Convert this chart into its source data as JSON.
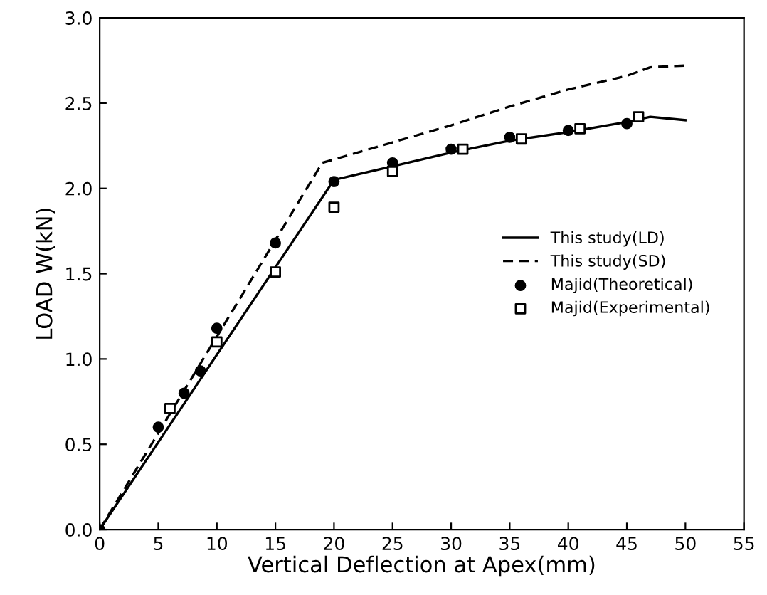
{
  "chart_data": {
    "type": "line",
    "xlabel": "Vertical Deflection at Apex(mm)",
    "ylabel": "LOAD W(kN)",
    "xlim": [
      0,
      55
    ],
    "ylim": [
      0,
      3.0
    ],
    "xticks": [
      0,
      5,
      10,
      15,
      20,
      25,
      30,
      35,
      40,
      45,
      50,
      55
    ],
    "yticks": [
      {
        "value": 0,
        "label": "0.0"
      },
      {
        "value": 0.5,
        "label": "0.5"
      },
      {
        "value": 1.0,
        "label": "1.0"
      },
      {
        "value": 1.5,
        "label": "1.5"
      },
      {
        "value": 2.0,
        "label": "2.0"
      },
      {
        "value": 2.5,
        "label": "2.5"
      },
      {
        "value": 3.0,
        "label": "3.0"
      }
    ],
    "grid": false,
    "legend": "right",
    "series": [
      {
        "name": "This study(LD)",
        "line_style": "solid",
        "marker": "none",
        "color": "#000000",
        "x": [
          0,
          20,
          25,
          30,
          35,
          40,
          45,
          47,
          50
        ],
        "values": [
          0,
          2.05,
          2.13,
          2.21,
          2.28,
          2.33,
          2.39,
          2.42,
          2.4
        ]
      },
      {
        "name": "This study(SD)",
        "line_style": "dashed",
        "marker": "none",
        "color": "#000000",
        "x": [
          0,
          19,
          25,
          30,
          35,
          40,
          45,
          47,
          50
        ],
        "values": [
          0,
          2.15,
          2.27,
          2.37,
          2.48,
          2.58,
          2.66,
          2.71,
          2.72
        ]
      },
      {
        "name": "Majid(Theoretical)",
        "type": "scatter",
        "marker": "circle",
        "color": "#000000",
        "x": [
          0,
          5,
          7.2,
          8.6,
          10,
          15,
          20,
          25,
          30,
          35,
          40,
          45
        ],
        "values": [
          0,
          0.6,
          0.8,
          0.93,
          1.18,
          1.68,
          2.04,
          2.15,
          2.23,
          2.3,
          2.34,
          2.38
        ]
      },
      {
        "name": "Majid(Experimental)",
        "type": "scatter",
        "marker": "square",
        "color": "#000000",
        "x": [
          6,
          10,
          15,
          20,
          25,
          31,
          36,
          41,
          46
        ],
        "values": [
          0.71,
          1.1,
          1.51,
          1.89,
          2.1,
          2.23,
          2.29,
          2.35,
          2.42
        ]
      }
    ]
  }
}
